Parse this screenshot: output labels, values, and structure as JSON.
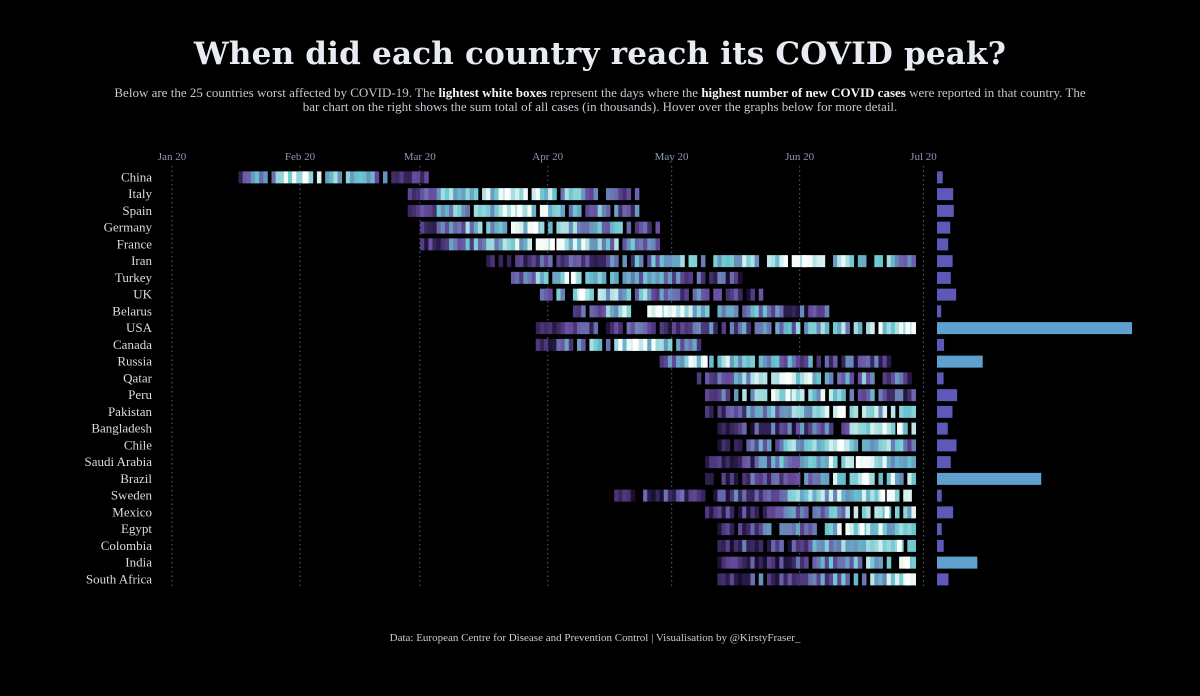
{
  "title": "When did each country reach its COVID peak?",
  "subtitle": {
    "p1": "Below are the 25 countries worst affected by COVID-19. The ",
    "b1": "lightest white boxes",
    "p2": " represent the days where the ",
    "b2": "highest number of new COVID cases",
    "p3": " were reported in that country. The bar chart on the right shows the sum total of all cases (in thousands). Hover over the graphs below for more detail."
  },
  "footer": "Data: European Centre for Disease and Prevention Control   |   Visualisation by @KirstyFraser_",
  "chart_data": {
    "type": "heatmap",
    "x_ticks": [
      "Jan 20",
      "Feb 20",
      "Mar 20",
      "Apr 20",
      "May 20",
      "Jun 20",
      "Jul 20"
    ],
    "x_range": [
      "2020-01-01",
      "2020-07-05"
    ],
    "colors": {
      "low": "#1a0f33",
      "mid": "#6a4fa3",
      "high": "#69c6cf",
      "peak": "#f5fbf7",
      "bar": "#5e58b8",
      "bar_highlight": "#5fa0cf"
    },
    "countries": [
      {
        "name": "China",
        "start": "2020-01-20",
        "end": "2020-03-05",
        "peak": "2020-02-05",
        "total_thousands": 85,
        "highlight": false
      },
      {
        "name": "Italy",
        "start": "2020-03-01",
        "end": "2020-04-25",
        "peak": "2020-03-25",
        "total_thousands": 241,
        "highlight": false
      },
      {
        "name": "Spain",
        "start": "2020-03-01",
        "end": "2020-04-25",
        "peak": "2020-03-28",
        "total_thousands": 250,
        "highlight": false
      },
      {
        "name": "Germany",
        "start": "2020-03-04",
        "end": "2020-04-30",
        "peak": "2020-04-01",
        "total_thousands": 197,
        "highlight": false
      },
      {
        "name": "France",
        "start": "2020-03-04",
        "end": "2020-04-30",
        "peak": "2020-04-05",
        "total_thousands": 167,
        "highlight": false
      },
      {
        "name": "Iran",
        "start": "2020-03-20",
        "end": "2020-07-01",
        "peak": "2020-06-05",
        "total_thousands": 232,
        "highlight": false
      },
      {
        "name": "Turkey",
        "start": "2020-03-26",
        "end": "2020-05-20",
        "peak": "2020-04-10",
        "total_thousands": 205,
        "highlight": false
      },
      {
        "name": "UK",
        "start": "2020-04-02",
        "end": "2020-05-25",
        "peak": "2020-04-12",
        "total_thousands": 285,
        "highlight": false
      },
      {
        "name": "Belarus",
        "start": "2020-04-10",
        "end": "2020-06-10",
        "peak": "2020-05-01",
        "total_thousands": 62,
        "highlight": false
      },
      {
        "name": "USA",
        "start": "2020-04-01",
        "end": "2020-07-01",
        "peak": "2020-06-30",
        "total_thousands": 2900,
        "highlight": true
      },
      {
        "name": "Canada",
        "start": "2020-04-01",
        "end": "2020-05-10",
        "peak": "2020-04-25",
        "total_thousands": 105,
        "highlight": false
      },
      {
        "name": "Russia",
        "start": "2020-05-01",
        "end": "2020-06-25",
        "peak": "2020-05-12",
        "total_thousands": 680,
        "highlight": true
      },
      {
        "name": "Qatar",
        "start": "2020-05-10",
        "end": "2020-06-30",
        "peak": "2020-06-01",
        "total_thousands": 98,
        "highlight": false
      },
      {
        "name": "Peru",
        "start": "2020-05-12",
        "end": "2020-07-01",
        "peak": "2020-06-01",
        "total_thousands": 300,
        "highlight": false
      },
      {
        "name": "Pakistan",
        "start": "2020-05-12",
        "end": "2020-07-01",
        "peak": "2020-06-14",
        "total_thousands": 230,
        "highlight": false
      },
      {
        "name": "Bangladesh",
        "start": "2020-05-15",
        "end": "2020-07-01",
        "peak": "2020-06-28",
        "total_thousands": 160,
        "highlight": false
      },
      {
        "name": "Chile",
        "start": "2020-05-15",
        "end": "2020-07-01",
        "peak": "2020-06-14",
        "total_thousands": 290,
        "highlight": false
      },
      {
        "name": "Saudi Arabia",
        "start": "2020-05-12",
        "end": "2020-07-01",
        "peak": "2020-06-18",
        "total_thousands": 205,
        "highlight": false
      },
      {
        "name": "Brazil",
        "start": "2020-05-12",
        "end": "2020-07-01",
        "peak": "2020-06-20",
        "total_thousands": 1550,
        "highlight": true
      },
      {
        "name": "Sweden",
        "start": "2020-04-20",
        "end": "2020-06-30",
        "peak": "2020-06-24",
        "total_thousands": 70,
        "highlight": false
      },
      {
        "name": "Mexico",
        "start": "2020-05-12",
        "end": "2020-07-01",
        "peak": "2020-06-25",
        "total_thousands": 240,
        "highlight": false
      },
      {
        "name": "Egypt",
        "start": "2020-05-15",
        "end": "2020-07-01",
        "peak": "2020-06-19",
        "total_thousands": 70,
        "highlight": false
      },
      {
        "name": "Colombia",
        "start": "2020-05-15",
        "end": "2020-07-01",
        "peak": "2020-06-28",
        "total_thousands": 100,
        "highlight": false
      },
      {
        "name": "India",
        "start": "2020-05-15",
        "end": "2020-07-01",
        "peak": "2020-06-30",
        "total_thousands": 600,
        "highlight": true
      },
      {
        "name": "South Africa",
        "start": "2020-05-15",
        "end": "2020-07-01",
        "peak": "2020-06-30",
        "total_thousands": 170,
        "highlight": false
      }
    ]
  }
}
